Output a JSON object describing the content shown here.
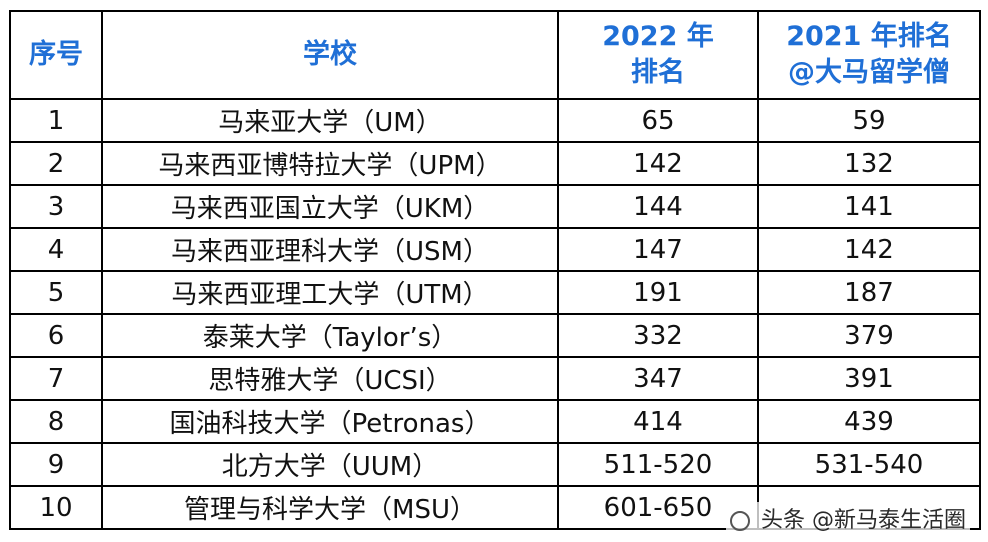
{
  "table": {
    "headers": {
      "rank_no": "序号",
      "school": "学校",
      "rank_2022_line1": "2022 年",
      "rank_2022_line2": "排名",
      "rank_2021_line1": "2021 年排名",
      "rank_2021_line2": "@大马留学僧"
    },
    "rows": [
      {
        "no": "1",
        "school": "马来亚大学（UM）",
        "r2022": "65",
        "r2021": "59"
      },
      {
        "no": "2",
        "school": "马来西亚博特拉大学（UPM）",
        "r2022": "142",
        "r2021": "132"
      },
      {
        "no": "3",
        "school": "马来西亚国立大学（UKM）",
        "r2022": "144",
        "r2021": "141"
      },
      {
        "no": "4",
        "school": "马来西亚理科大学（USM）",
        "r2022": "147",
        "r2021": "142"
      },
      {
        "no": "5",
        "school": "马来西亚理工大学（UTM）",
        "r2022": "191",
        "r2021": "187"
      },
      {
        "no": "6",
        "school": "泰莱大学（Taylor’s）",
        "r2022": "332",
        "r2021": "379"
      },
      {
        "no": "7",
        "school": "思特雅大学（UCSI）",
        "r2022": "347",
        "r2021": "391"
      },
      {
        "no": "8",
        "school": "国油科技大学（Petronas）",
        "r2022": "414",
        "r2021": "439"
      },
      {
        "no": "9",
        "school": "北方大学（UUM）",
        "r2022": "511-520",
        "r2021": "531-540"
      },
      {
        "no": "10",
        "school": "管理与科学大学（MSU）",
        "r2022": "601-650",
        "r2021": ""
      }
    ]
  },
  "watermark": {
    "text": "头条 @新马泰生活圈"
  },
  "colors": {
    "header_text": "#1f6fd6"
  }
}
